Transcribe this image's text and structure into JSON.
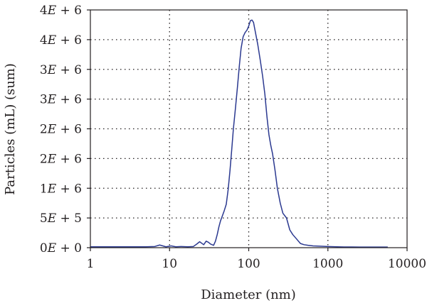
{
  "chart_data": {
    "type": "line",
    "title": "",
    "xlabel": "Diameter (nm)",
    "ylabel": "Particles (mL) (sum)",
    "x_scale": "log",
    "xlim": [
      1,
      10000
    ],
    "ylim": [
      0,
      4000000
    ],
    "grid": true,
    "legend": "none",
    "x_ticks": [
      {
        "value": 1,
        "label": "1"
      },
      {
        "value": 10,
        "label": "10"
      },
      {
        "value": 100,
        "label": "100"
      },
      {
        "value": 1000,
        "label": "1000"
      },
      {
        "value": 10000,
        "label": "10000"
      }
    ],
    "y_ticks": [
      {
        "value": 0,
        "label": "0E + 0"
      },
      {
        "value": 500000,
        "label": "5E + 5"
      },
      {
        "value": 1000000,
        "label": "1E + 6"
      },
      {
        "value": 1500000,
        "label": "2E + 6"
      },
      {
        "value": 2000000,
        "label": "2E + 6"
      },
      {
        "value": 2500000,
        "label": "3E + 6"
      },
      {
        "value": 3000000,
        "label": "3E + 6"
      },
      {
        "value": 3500000,
        "label": "4E + 6"
      },
      {
        "value": 4000000,
        "label": "4E + 6"
      }
    ],
    "series": [
      {
        "color": "#2b3990",
        "x": [
          1.0,
          5.0,
          6.5,
          7.5,
          9.0,
          10.5,
          12,
          14,
          17,
          20,
          22,
          24,
          27,
          29,
          31,
          33,
          36,
          38,
          40,
          42,
          44,
          46,
          49,
          52,
          55,
          58,
          61,
          64,
          68,
          72,
          76,
          80,
          85,
          90,
          95,
          100,
          105,
          110,
          115,
          120,
          130,
          140,
          150,
          160,
          170,
          180,
          190,
          200,
          215,
          230,
          250,
          270,
          300,
          330,
          360,
          400,
          450,
          500,
          560,
          650,
          800,
          1000,
          1300,
          1600,
          2000,
          2500,
          3000,
          4000,
          5000,
          5700
        ],
        "y": [
          15000,
          15000,
          20000,
          45000,
          15000,
          30000,
          15000,
          20000,
          15000,
          20000,
          60000,
          100000,
          50000,
          110000,
          90000,
          60000,
          40000,
          110000,
          220000,
          350000,
          450000,
          520000,
          620000,
          730000,
          980000,
          1300000,
          1650000,
          2000000,
          2350000,
          2700000,
          3050000,
          3350000,
          3550000,
          3620000,
          3660000,
          3730000,
          3820000,
          3830000,
          3790000,
          3660000,
          3420000,
          3150000,
          2880000,
          2580000,
          2200000,
          1900000,
          1720000,
          1580000,
          1300000,
          1000000,
          750000,
          580000,
          500000,
          300000,
          220000,
          150000,
          70000,
          50000,
          40000,
          30000,
          25000,
          20000,
          15000,
          12000,
          12000,
          10000,
          10000,
          10000,
          10000,
          10000
        ]
      }
    ]
  }
}
